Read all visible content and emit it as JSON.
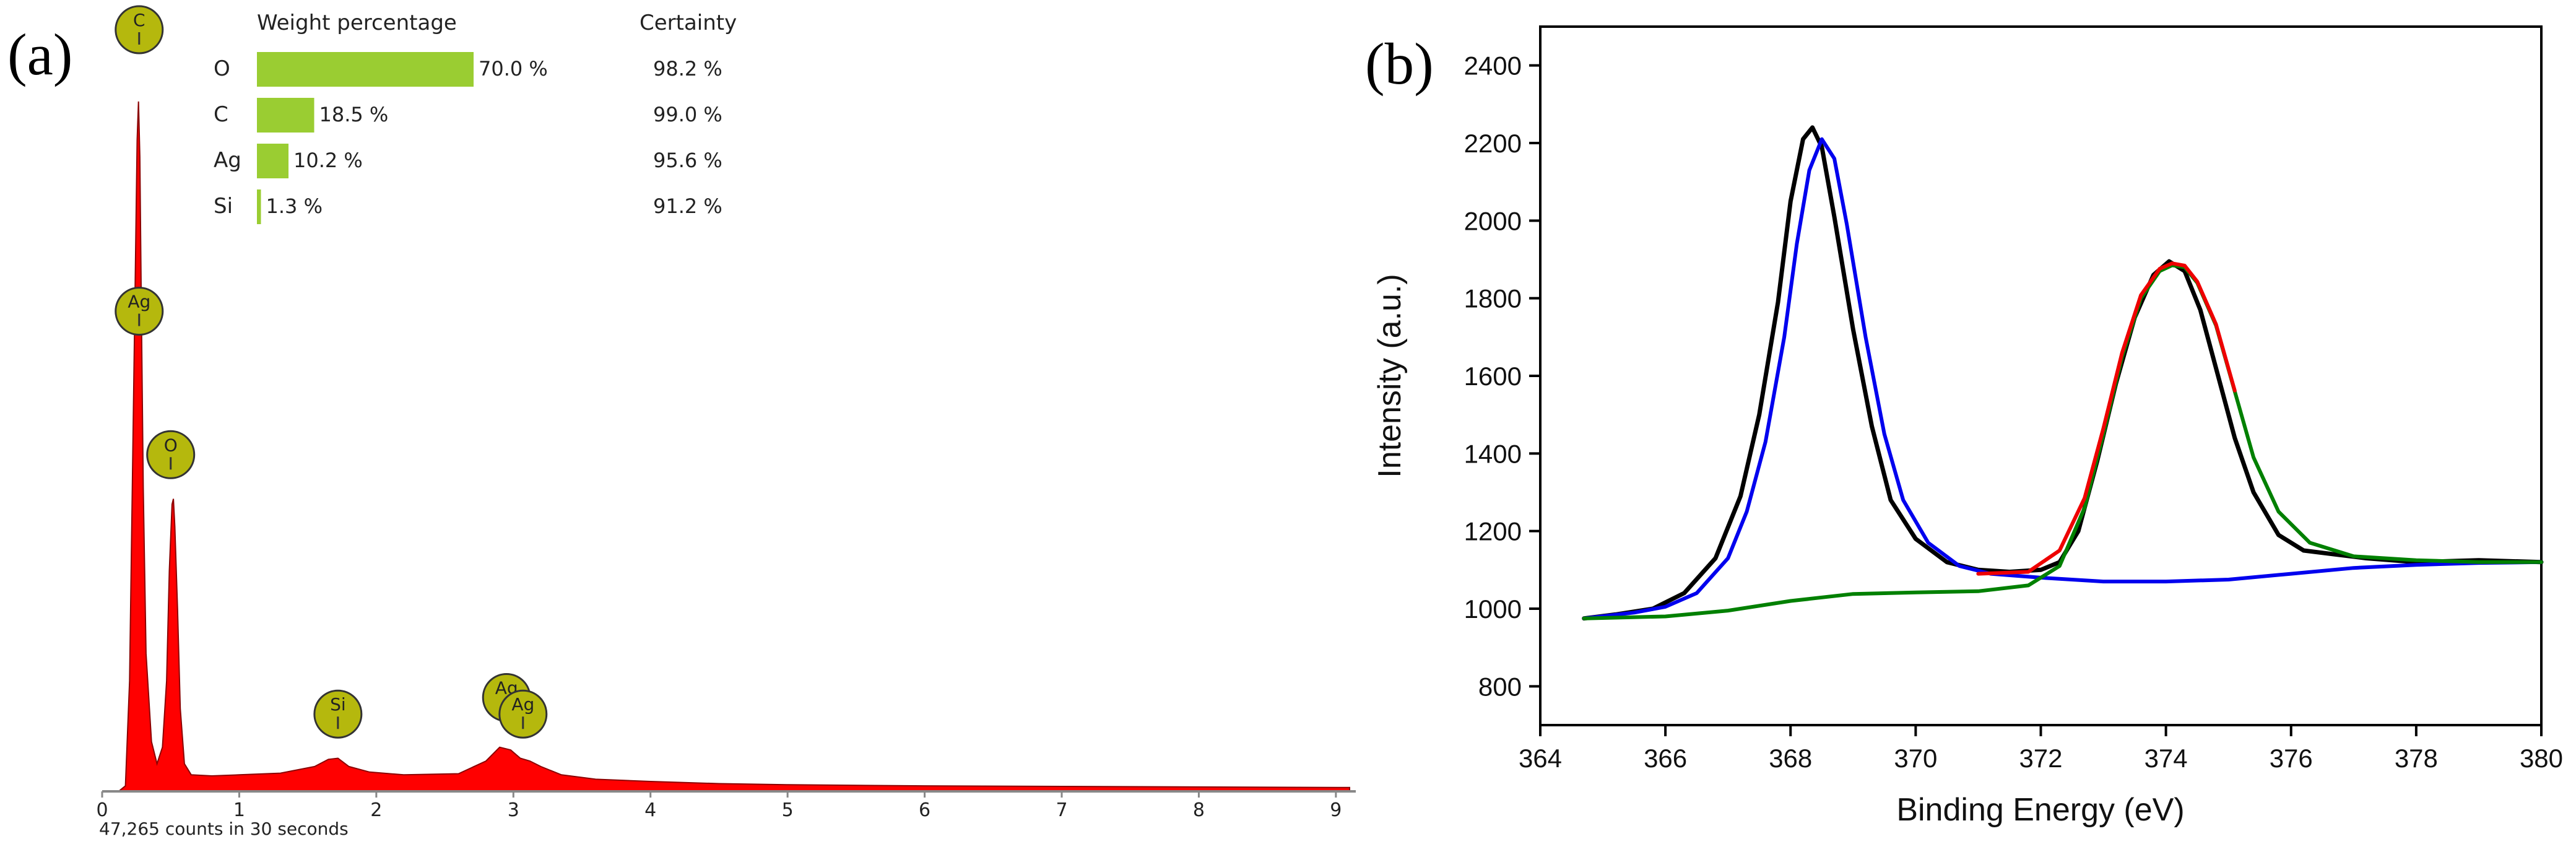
{
  "chart_data": [
    {
      "panel_label": "(a)",
      "type": "area",
      "xlim": [
        0,
        9.1
      ],
      "x_ticks": [
        "0",
        "1",
        "2",
        "3",
        "4",
        "5",
        "6",
        "7",
        "8",
        "9"
      ],
      "footer": "47,265 counts in 30 seconds",
      "spectrum_color": "#ff0000",
      "spectrum": {
        "x": [
          0.0,
          0.12,
          0.17,
          0.2,
          0.22,
          0.24,
          0.255,
          0.265,
          0.275,
          0.285,
          0.3,
          0.32,
          0.36,
          0.4,
          0.44,
          0.47,
          0.49,
          0.51,
          0.52,
          0.53,
          0.55,
          0.57,
          0.6,
          0.65,
          0.8,
          1.0,
          1.3,
          1.55,
          1.65,
          1.72,
          1.8,
          1.95,
          2.2,
          2.6,
          2.8,
          2.9,
          2.98,
          3.05,
          3.12,
          3.2,
          3.35,
          3.6,
          4.0,
          4.5,
          5.0,
          6.0,
          7.0,
          8.0,
          9.1
        ],
        "y": [
          0,
          0,
          0.01,
          0.2,
          0.55,
          0.9,
          1.18,
          1.25,
          1.15,
          0.9,
          0.55,
          0.25,
          0.09,
          0.05,
          0.08,
          0.2,
          0.4,
          0.52,
          0.53,
          0.48,
          0.33,
          0.15,
          0.05,
          0.03,
          0.028,
          0.03,
          0.033,
          0.045,
          0.058,
          0.06,
          0.045,
          0.035,
          0.03,
          0.032,
          0.055,
          0.08,
          0.075,
          0.06,
          0.055,
          0.045,
          0.03,
          0.022,
          0.018,
          0.014,
          0.012,
          0.01,
          0.009,
          0.008,
          0.007
        ]
      },
      "peak_labels": [
        {
          "element": "C",
          "x": 0.27,
          "level": 1.38
        },
        {
          "element": "Ag",
          "x": 0.27,
          "level": 0.87
        },
        {
          "element": "O",
          "x": 0.5,
          "level": 0.61
        },
        {
          "element": "Si",
          "x": 1.72,
          "level": 0.14
        },
        {
          "element": "Ag",
          "x": 2.95,
          "level": 0.17
        },
        {
          "element": "Ag",
          "x": 3.07,
          "level": 0.14
        }
      ],
      "label_color": "#b5b80d",
      "table": {
        "header_weight": "Weight percentage",
        "header_certainty": "Certainty",
        "bar_color": "#9acd32",
        "rows": [
          {
            "element": "O",
            "weight_percent": 70.0,
            "weight_label": "70.0 %",
            "certainty": "98.2 %"
          },
          {
            "element": "C",
            "weight_percent": 18.5,
            "weight_label": "18.5 %",
            "certainty": "99.0 %"
          },
          {
            "element": "Ag",
            "weight_percent": 10.2,
            "weight_label": "10.2 %",
            "certainty": "95.6 %"
          },
          {
            "element": "Si",
            "weight_percent": 1.3,
            "weight_label": "1.3 %",
            "certainty": "91.2 %"
          }
        ]
      }
    },
    {
      "panel_label": "(b)",
      "type": "line",
      "xlabel": "Binding Energy (eV)",
      "ylabel": "Intensity (a.u.)",
      "xlim": [
        364,
        380
      ],
      "ylim": [
        700,
        2500
      ],
      "x_ticks": [
        "364",
        "366",
        "368",
        "370",
        "372",
        "374",
        "376",
        "378",
        "380"
      ],
      "y_ticks": [
        "800",
        "1000",
        "1200",
        "1400",
        "1600",
        "1800",
        "2000",
        "2200",
        "2400"
      ],
      "series": [
        {
          "color": "#000000",
          "x": [
            364.7,
            365.2,
            365.8,
            366.3,
            366.8,
            367.2,
            367.5,
            367.8,
            368.0,
            368.2,
            368.35,
            368.5,
            368.7,
            369.0,
            369.3,
            369.6,
            370.0,
            370.5,
            371.0,
            371.5,
            372.0,
            372.3,
            372.6,
            372.9,
            373.2,
            373.5,
            373.8,
            374.05,
            374.3,
            374.55,
            374.8,
            375.1,
            375.4,
            375.8,
            376.2,
            376.7,
            377.2,
            378.0,
            379.0,
            380.0
          ],
          "y": [
            975,
            985,
            1000,
            1040,
            1130,
            1290,
            1500,
            1790,
            2050,
            2210,
            2240,
            2190,
            2010,
            1720,
            1470,
            1280,
            1180,
            1120,
            1100,
            1095,
            1100,
            1120,
            1200,
            1380,
            1580,
            1750,
            1860,
            1895,
            1870,
            1770,
            1620,
            1440,
            1300,
            1190,
            1150,
            1140,
            1130,
            1120,
            1125,
            1120
          ]
        },
        {
          "color": "#0000ee",
          "x": [
            364.7,
            365.5,
            366.0,
            366.5,
            367.0,
            367.3,
            367.6,
            367.9,
            368.1,
            368.3,
            368.5,
            368.7,
            368.9,
            369.2,
            369.5,
            369.8,
            370.2,
            370.7,
            371.2,
            372.0,
            373.0,
            374.0,
            375.0,
            376.0,
            377.0,
            378.0,
            379.0,
            380.0
          ],
          "y": [
            975,
            990,
            1005,
            1040,
            1130,
            1250,
            1430,
            1700,
            1940,
            2130,
            2210,
            2160,
            1990,
            1700,
            1450,
            1280,
            1170,
            1110,
            1090,
            1080,
            1070,
            1070,
            1075,
            1090,
            1105,
            1113,
            1118,
            1120
          ]
        },
        {
          "color": "#008000",
          "x": [
            364.7,
            366.0,
            367.0,
            368.0,
            369.0,
            370.0,
            371.0,
            371.8,
            372.3,
            372.7,
            373.0,
            373.3,
            373.6,
            373.9,
            374.1,
            374.3,
            374.5,
            374.8,
            375.1,
            375.4,
            375.8,
            376.3,
            377.0,
            378.0,
            379.0,
            380.0
          ],
          "y": [
            975,
            980,
            995,
            1020,
            1038,
            1042,
            1045,
            1060,
            1110,
            1260,
            1450,
            1650,
            1800,
            1870,
            1885,
            1880,
            1840,
            1730,
            1560,
            1390,
            1250,
            1170,
            1135,
            1125,
            1120,
            1120
          ]
        },
        {
          "color": "#ee0000",
          "x": [
            371.0,
            371.8,
            372.3,
            372.7,
            373.0,
            373.3,
            373.6,
            373.9,
            374.1,
            374.3,
            374.5,
            374.8,
            375.1
          ],
          "y": [
            1090,
            1095,
            1150,
            1285,
            1465,
            1660,
            1808,
            1876,
            1890,
            1884,
            1843,
            1733,
            1562
          ]
        }
      ]
    }
  ]
}
